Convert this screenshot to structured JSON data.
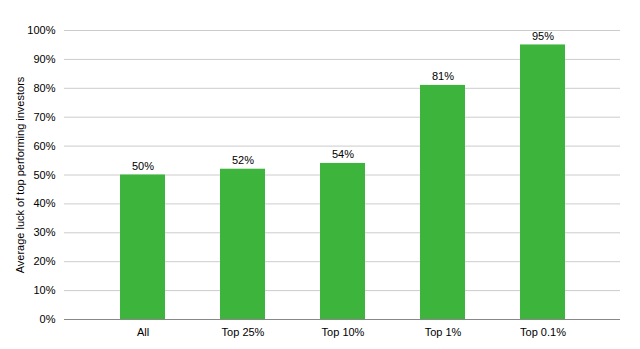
{
  "chart_data": {
    "type": "bar",
    "ylabel": "Average luck of top performing investors",
    "categories": [
      "All",
      "Top 25%",
      "Top 10%",
      "Top 1%",
      "Top 0.1%"
    ],
    "values": [
      50,
      52,
      54,
      81,
      95
    ],
    "value_labels": [
      "50%",
      "52%",
      "54%",
      "81%",
      "95%"
    ],
    "color": "#3db53d",
    "ylim": [
      0,
      100
    ],
    "yticks": [
      {
        "value": 0,
        "label": "0%"
      },
      {
        "value": 10,
        "label": "10%"
      },
      {
        "value": 20,
        "label": "20%"
      },
      {
        "value": 30,
        "label": "30%"
      },
      {
        "value": 40,
        "label": "40%"
      },
      {
        "value": 50,
        "label": "50%"
      },
      {
        "value": 60,
        "label": "60%"
      },
      {
        "value": 70,
        "label": "70%"
      },
      {
        "value": 80,
        "label": "80%"
      },
      {
        "value": 90,
        "label": "90%"
      },
      {
        "value": 100,
        "label": "100%"
      }
    ],
    "grid": true,
    "data_labels": true
  }
}
